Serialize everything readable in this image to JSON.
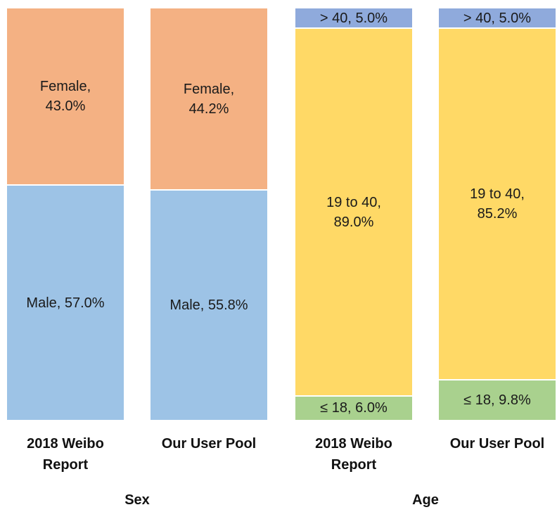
{
  "chart_data": [
    {
      "type": "bar",
      "stacked": true,
      "title": "Sex",
      "categories": [
        "2018 Weibo Report",
        "Our User Pool"
      ],
      "ylim": [
        0,
        100
      ],
      "series": [
        {
          "color": "#9dc3e6",
          "values": [
            57.0,
            55.8
          ],
          "value_labels": [
            "Male, 57.0%",
            "Male, 55.8%"
          ]
        },
        {
          "color": "#f4b183",
          "values": [
            43.0,
            44.2
          ],
          "value_labels": [
            "Female,\n43.0%",
            "Female,\n44.2%"
          ]
        }
      ]
    },
    {
      "type": "bar",
      "stacked": true,
      "title": "Age",
      "categories": [
        "2018 Weibo Report",
        "Our User Pool"
      ],
      "ylim": [
        0,
        100
      ],
      "series": [
        {
          "color": "#a9d18e",
          "values": [
            6.0,
            9.8
          ],
          "value_labels": [
            "≤ 18, 6.0%",
            "≤ 18, 9.8%"
          ]
        },
        {
          "color": "#ffd966",
          "values": [
            89.0,
            85.2
          ],
          "value_labels": [
            "19 to 40,\n89.0%",
            "19 to 40,\n85.2%"
          ]
        },
        {
          "color": "#8faadc",
          "values": [
            5.0,
            5.0
          ],
          "value_labels": [
            "> 40, 5.0%",
            "> 40, 5.0%"
          ]
        }
      ]
    }
  ]
}
